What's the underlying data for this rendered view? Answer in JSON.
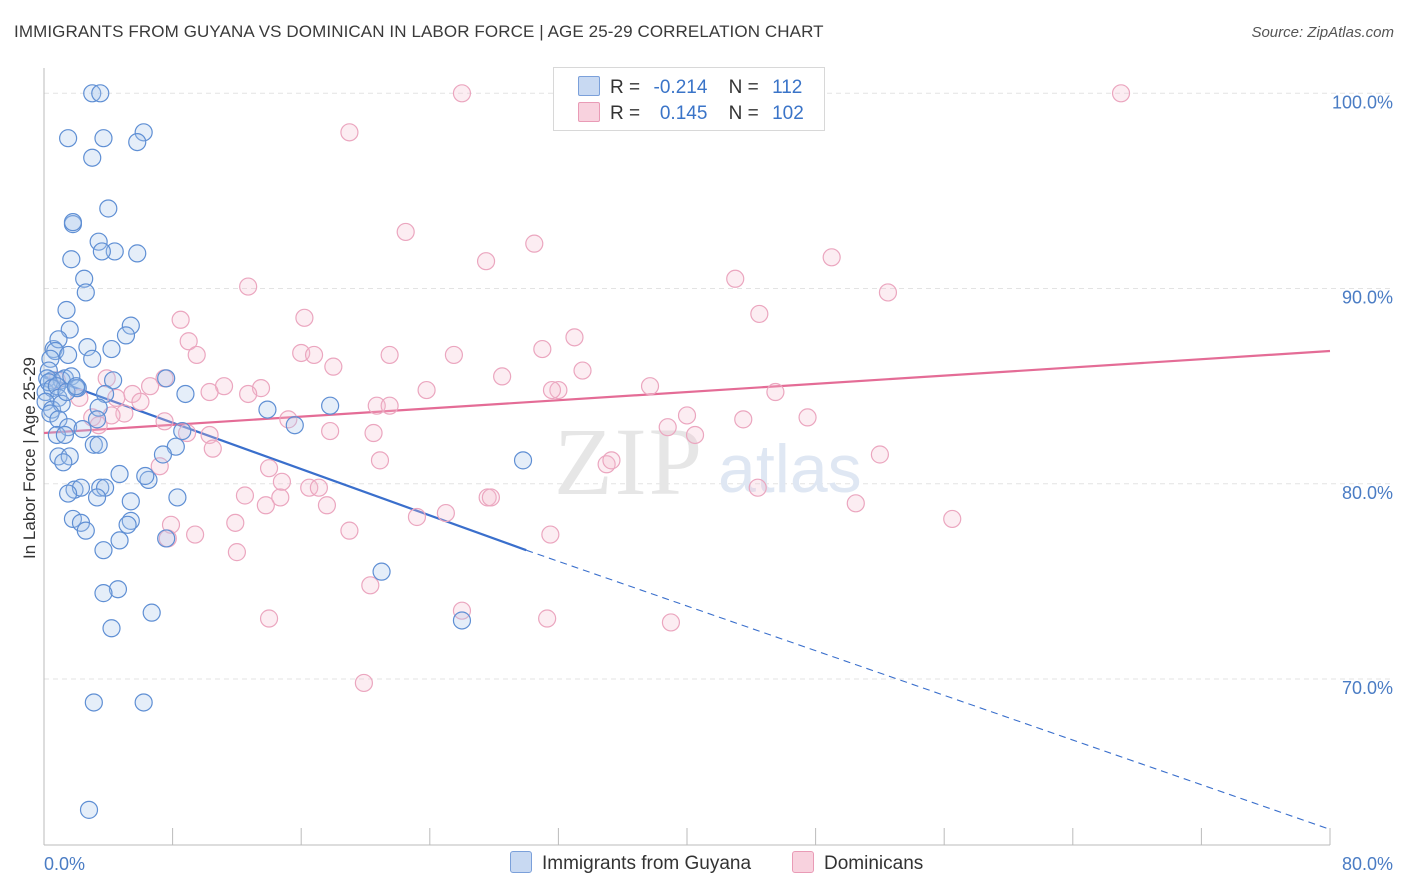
{
  "title": "IMMIGRANTS FROM GUYANA VS DOMINICAN IN LABOR FORCE | AGE 25-29 CORRELATION CHART",
  "source": "Source: ZipAtlas.com",
  "watermark": {
    "zip": "ZIP",
    "atlas": "atlas"
  },
  "legend": {
    "r_label": "R =",
    "n_label": "N =",
    "rows": [
      {
        "r": "-0.214",
        "n": "112"
      },
      {
        "r": "0.145",
        "n": "102"
      }
    ]
  },
  "bottom_legend": [
    "Immigrants from Guyana",
    "Dominicans"
  ],
  "colors": {
    "blue": "#3a6fcc",
    "blue_fill": "#aac6ec",
    "pink": "#e46c96",
    "pink_fill": "#f4bfd0",
    "tick_text": "#4a7cc4"
  },
  "chart_data": {
    "type": "scatter",
    "xlabel": "",
    "ylabel": "In Labor Force | Age 25-29",
    "xlim": [
      0,
      80
    ],
    "ylim": [
      61.5,
      101.5
    ],
    "x_tick_labels": [
      "0.0%",
      "80.0%"
    ],
    "y_ticks": [
      70,
      80,
      90,
      100
    ],
    "y_tick_labels": [
      "70.0%",
      "80.0%",
      "90.0%",
      "100.0%"
    ],
    "grid": true,
    "legend_position": "top-center",
    "series": [
      {
        "name": "Immigrants from Guyana",
        "r": -0.214,
        "n": 112,
        "trend": {
          "x0": 0,
          "y0": 85.5,
          "x1": 30,
          "y1": 76.6,
          "dashed_to_x": 80,
          "dashed_to_y": 62.3
        },
        "points": [
          [
            3.0,
            100.0
          ],
          [
            3.5,
            100.0
          ],
          [
            1.5,
            97.7
          ],
          [
            3.7,
            97.7
          ],
          [
            6.2,
            98.0
          ],
          [
            5.8,
            97.5
          ],
          [
            3.0,
            96.7
          ],
          [
            4.0,
            94.1
          ],
          [
            1.8,
            93.3
          ],
          [
            1.8,
            93.4
          ],
          [
            3.4,
            92.4
          ],
          [
            5.8,
            91.8
          ],
          [
            1.7,
            91.5
          ],
          [
            4.4,
            91.9
          ],
          [
            3.6,
            91.9
          ],
          [
            2.5,
            90.5
          ],
          [
            2.6,
            89.8
          ],
          [
            1.4,
            88.9
          ],
          [
            5.4,
            88.1
          ],
          [
            1.6,
            87.9
          ],
          [
            0.6,
            86.9
          ],
          [
            0.9,
            87.4
          ],
          [
            5.1,
            87.6
          ],
          [
            0.7,
            86.8
          ],
          [
            1.5,
            86.6
          ],
          [
            2.7,
            87.0
          ],
          [
            3.0,
            86.4
          ],
          [
            4.2,
            86.9
          ],
          [
            0.4,
            86.4
          ],
          [
            0.3,
            85.8
          ],
          [
            1.3,
            85.4
          ],
          [
            0.5,
            85.3
          ],
          [
            0.2,
            85.4
          ],
          [
            1.1,
            85.3
          ],
          [
            1.7,
            85.5
          ],
          [
            4.3,
            85.3
          ],
          [
            7.6,
            85.4
          ],
          [
            0.1,
            84.7
          ],
          [
            0.3,
            85.2
          ],
          [
            0.5,
            84.9
          ],
          [
            0.8,
            85.0
          ],
          [
            2.1,
            84.9
          ],
          [
            3.8,
            84.6
          ],
          [
            0.9,
            84.4
          ],
          [
            0.1,
            84.2
          ],
          [
            0.5,
            83.8
          ],
          [
            2.0,
            84.9
          ],
          [
            8.8,
            84.6
          ],
          [
            13.9,
            83.8
          ],
          [
            17.8,
            84.0
          ],
          [
            1.1,
            84.1
          ],
          [
            3.4,
            83.9
          ],
          [
            0.4,
            83.6
          ],
          [
            0.9,
            83.3
          ],
          [
            1.5,
            82.9
          ],
          [
            3.3,
            83.3
          ],
          [
            15.6,
            83.0
          ],
          [
            2.4,
            82.8
          ],
          [
            0.8,
            82.5
          ],
          [
            1.3,
            82.5
          ],
          [
            8.6,
            82.7
          ],
          [
            3.1,
            82.0
          ],
          [
            3.4,
            82.0
          ],
          [
            8.2,
            81.9
          ],
          [
            0.9,
            81.4
          ],
          [
            1.6,
            81.4
          ],
          [
            7.4,
            81.5
          ],
          [
            1.2,
            81.1
          ],
          [
            4.7,
            80.5
          ],
          [
            6.5,
            80.2
          ],
          [
            6.3,
            80.4
          ],
          [
            1.9,
            79.7
          ],
          [
            2.3,
            79.8
          ],
          [
            3.5,
            79.8
          ],
          [
            3.8,
            79.8
          ],
          [
            1.5,
            79.5
          ],
          [
            3.3,
            79.3
          ],
          [
            8.3,
            79.3
          ],
          [
            5.4,
            79.1
          ],
          [
            1.8,
            78.2
          ],
          [
            2.3,
            78.0
          ],
          [
            5.4,
            78.1
          ],
          [
            5.2,
            77.9
          ],
          [
            2.6,
            77.6
          ],
          [
            7.6,
            77.2
          ],
          [
            4.7,
            77.1
          ],
          [
            3.7,
            76.6
          ],
          [
            21.0,
            75.5
          ],
          [
            4.6,
            74.6
          ],
          [
            3.7,
            74.4
          ],
          [
            6.7,
            73.4
          ],
          [
            26.0,
            73.0
          ],
          [
            4.2,
            72.6
          ],
          [
            3.1,
            68.8
          ],
          [
            6.2,
            68.8
          ],
          [
            2.8,
            63.3
          ],
          [
            29.8,
            81.2
          ],
          [
            1.4,
            84.7
          ],
          [
            2.0,
            85.0
          ]
        ]
      },
      {
        "name": "Dominicans",
        "r": 0.145,
        "n": 102,
        "trend": {
          "x0": 0,
          "y0": 82.6,
          "x1": 80,
          "y1": 86.8
        },
        "points": [
          [
            26.0,
            100.0
          ],
          [
            67.0,
            100.0
          ],
          [
            19.0,
            98.0
          ],
          [
            22.5,
            92.9
          ],
          [
            30.5,
            92.3
          ],
          [
            27.5,
            91.4
          ],
          [
            49.0,
            91.6
          ],
          [
            43.0,
            90.5
          ],
          [
            12.7,
            90.1
          ],
          [
            52.5,
            89.8
          ],
          [
            44.5,
            88.7
          ],
          [
            16.2,
            88.5
          ],
          [
            8.5,
            88.4
          ],
          [
            9.0,
            87.3
          ],
          [
            33.0,
            87.5
          ],
          [
            16.0,
            86.7
          ],
          [
            16.8,
            86.6
          ],
          [
            21.5,
            86.6
          ],
          [
            25.5,
            86.6
          ],
          [
            31.0,
            86.9
          ],
          [
            9.5,
            86.6
          ],
          [
            18.0,
            86.0
          ],
          [
            33.5,
            85.8
          ],
          [
            28.5,
            85.5
          ],
          [
            7.5,
            85.4
          ],
          [
            3.9,
            85.4
          ],
          [
            0.8,
            85.3
          ],
          [
            6.6,
            85.0
          ],
          [
            11.2,
            85.0
          ],
          [
            13.5,
            84.9
          ],
          [
            23.8,
            84.8
          ],
          [
            37.7,
            85.0
          ],
          [
            32.0,
            84.8
          ],
          [
            5.5,
            84.6
          ],
          [
            10.3,
            84.7
          ],
          [
            12.7,
            84.6
          ],
          [
            2.2,
            84.4
          ],
          [
            4.5,
            84.4
          ],
          [
            6.0,
            84.2
          ],
          [
            20.7,
            84.0
          ],
          [
            15.2,
            83.3
          ],
          [
            5.0,
            83.6
          ],
          [
            4.2,
            83.5
          ],
          [
            3.0,
            83.4
          ],
          [
            7.5,
            83.2
          ],
          [
            40.0,
            83.5
          ],
          [
            43.5,
            83.3
          ],
          [
            47.5,
            83.4
          ],
          [
            38.8,
            82.9
          ],
          [
            17.8,
            82.7
          ],
          [
            8.9,
            82.6
          ],
          [
            10.3,
            82.5
          ],
          [
            40.5,
            82.5
          ],
          [
            3.4,
            83.0
          ],
          [
            10.5,
            81.8
          ],
          [
            20.9,
            81.2
          ],
          [
            35.0,
            81.0
          ],
          [
            7.2,
            80.9
          ],
          [
            35.3,
            81.2
          ],
          [
            14.0,
            80.8
          ],
          [
            52.0,
            81.5
          ],
          [
            14.8,
            80.1
          ],
          [
            16.5,
            79.8
          ],
          [
            17.1,
            79.8
          ],
          [
            44.4,
            79.8
          ],
          [
            12.5,
            79.4
          ],
          [
            14.7,
            79.3
          ],
          [
            27.6,
            79.3
          ],
          [
            27.8,
            79.3
          ],
          [
            17.6,
            78.9
          ],
          [
            13.8,
            78.9
          ],
          [
            23.2,
            78.3
          ],
          [
            25.0,
            78.5
          ],
          [
            11.9,
            78.0
          ],
          [
            7.9,
            77.9
          ],
          [
            19.0,
            77.6
          ],
          [
            9.4,
            77.4
          ],
          [
            31.5,
            77.4
          ],
          [
            7.7,
            77.2
          ],
          [
            56.5,
            78.2
          ],
          [
            50.5,
            79.0
          ],
          [
            12.0,
            76.5
          ],
          [
            20.3,
            74.8
          ],
          [
            26.0,
            73.5
          ],
          [
            14.0,
            73.1
          ],
          [
            31.3,
            73.1
          ],
          [
            39.0,
            72.9
          ],
          [
            19.9,
            69.8
          ],
          [
            31.6,
            84.8
          ],
          [
            21.5,
            84.0
          ],
          [
            20.5,
            82.6
          ],
          [
            45.5,
            84.7
          ]
        ]
      }
    ]
  }
}
